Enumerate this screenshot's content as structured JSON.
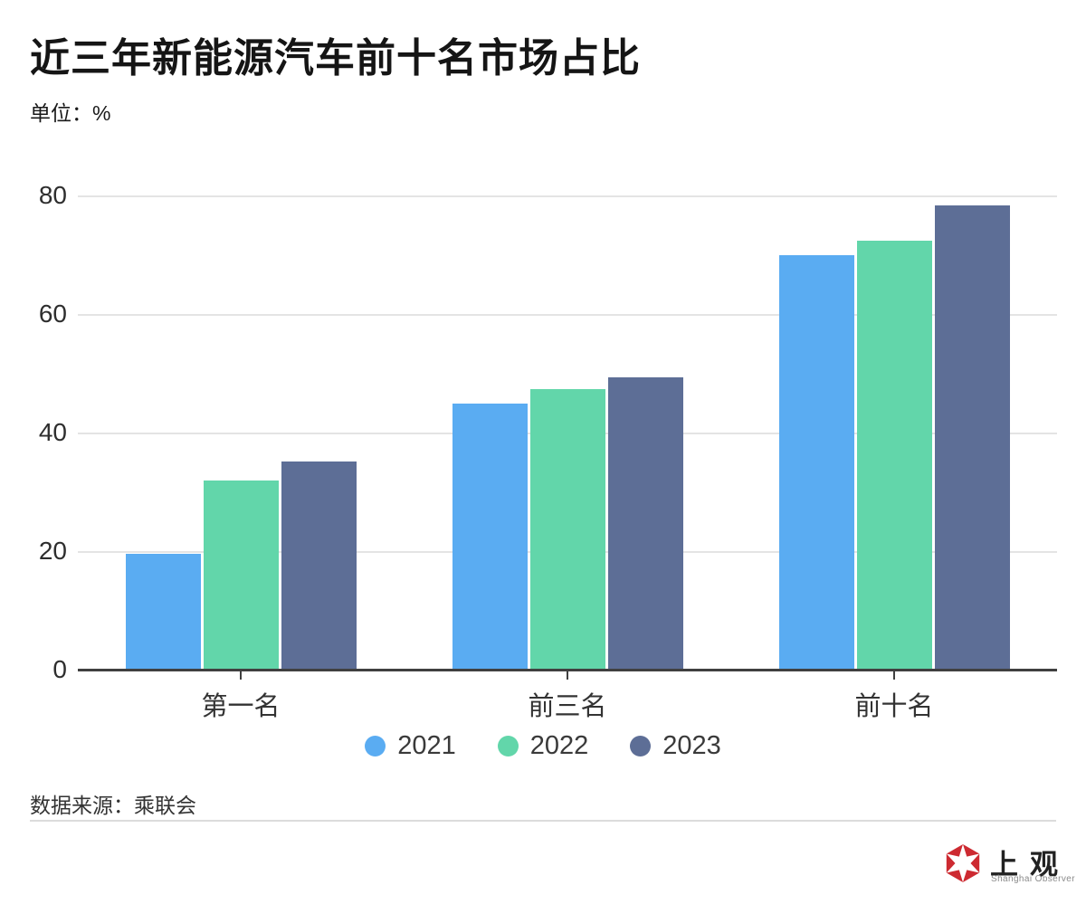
{
  "header": {
    "title": "近三年新能源汽车前十名市场占比",
    "unit_label": "单位：%"
  },
  "chart_data": {
    "type": "bar",
    "title": "近三年新能源汽车前十名市场占比",
    "ylabel": "单位：%",
    "xlabel": "",
    "categories": [
      "第一名",
      "前三名",
      "前十名"
    ],
    "series": [
      {
        "name": "2021",
        "color": "#5aacf2",
        "values": [
          19.7,
          45.0,
          70.0
        ]
      },
      {
        "name": "2022",
        "color": "#62d6aa",
        "values": [
          32.0,
          47.5,
          72.5
        ]
      },
      {
        "name": "2023",
        "color": "#5d6e96",
        "values": [
          35.2,
          49.4,
          78.4
        ]
      }
    ],
    "ylim": [
      0,
      80
    ],
    "yticks": [
      0,
      20,
      40,
      60,
      80
    ],
    "grid": true,
    "legend_position": "bottom"
  },
  "footer": {
    "source": "数据来源：乘联会"
  },
  "logo": {
    "cn": "上观",
    "en": "Shanghai Observer",
    "icon_color": "#cd2a31"
  }
}
